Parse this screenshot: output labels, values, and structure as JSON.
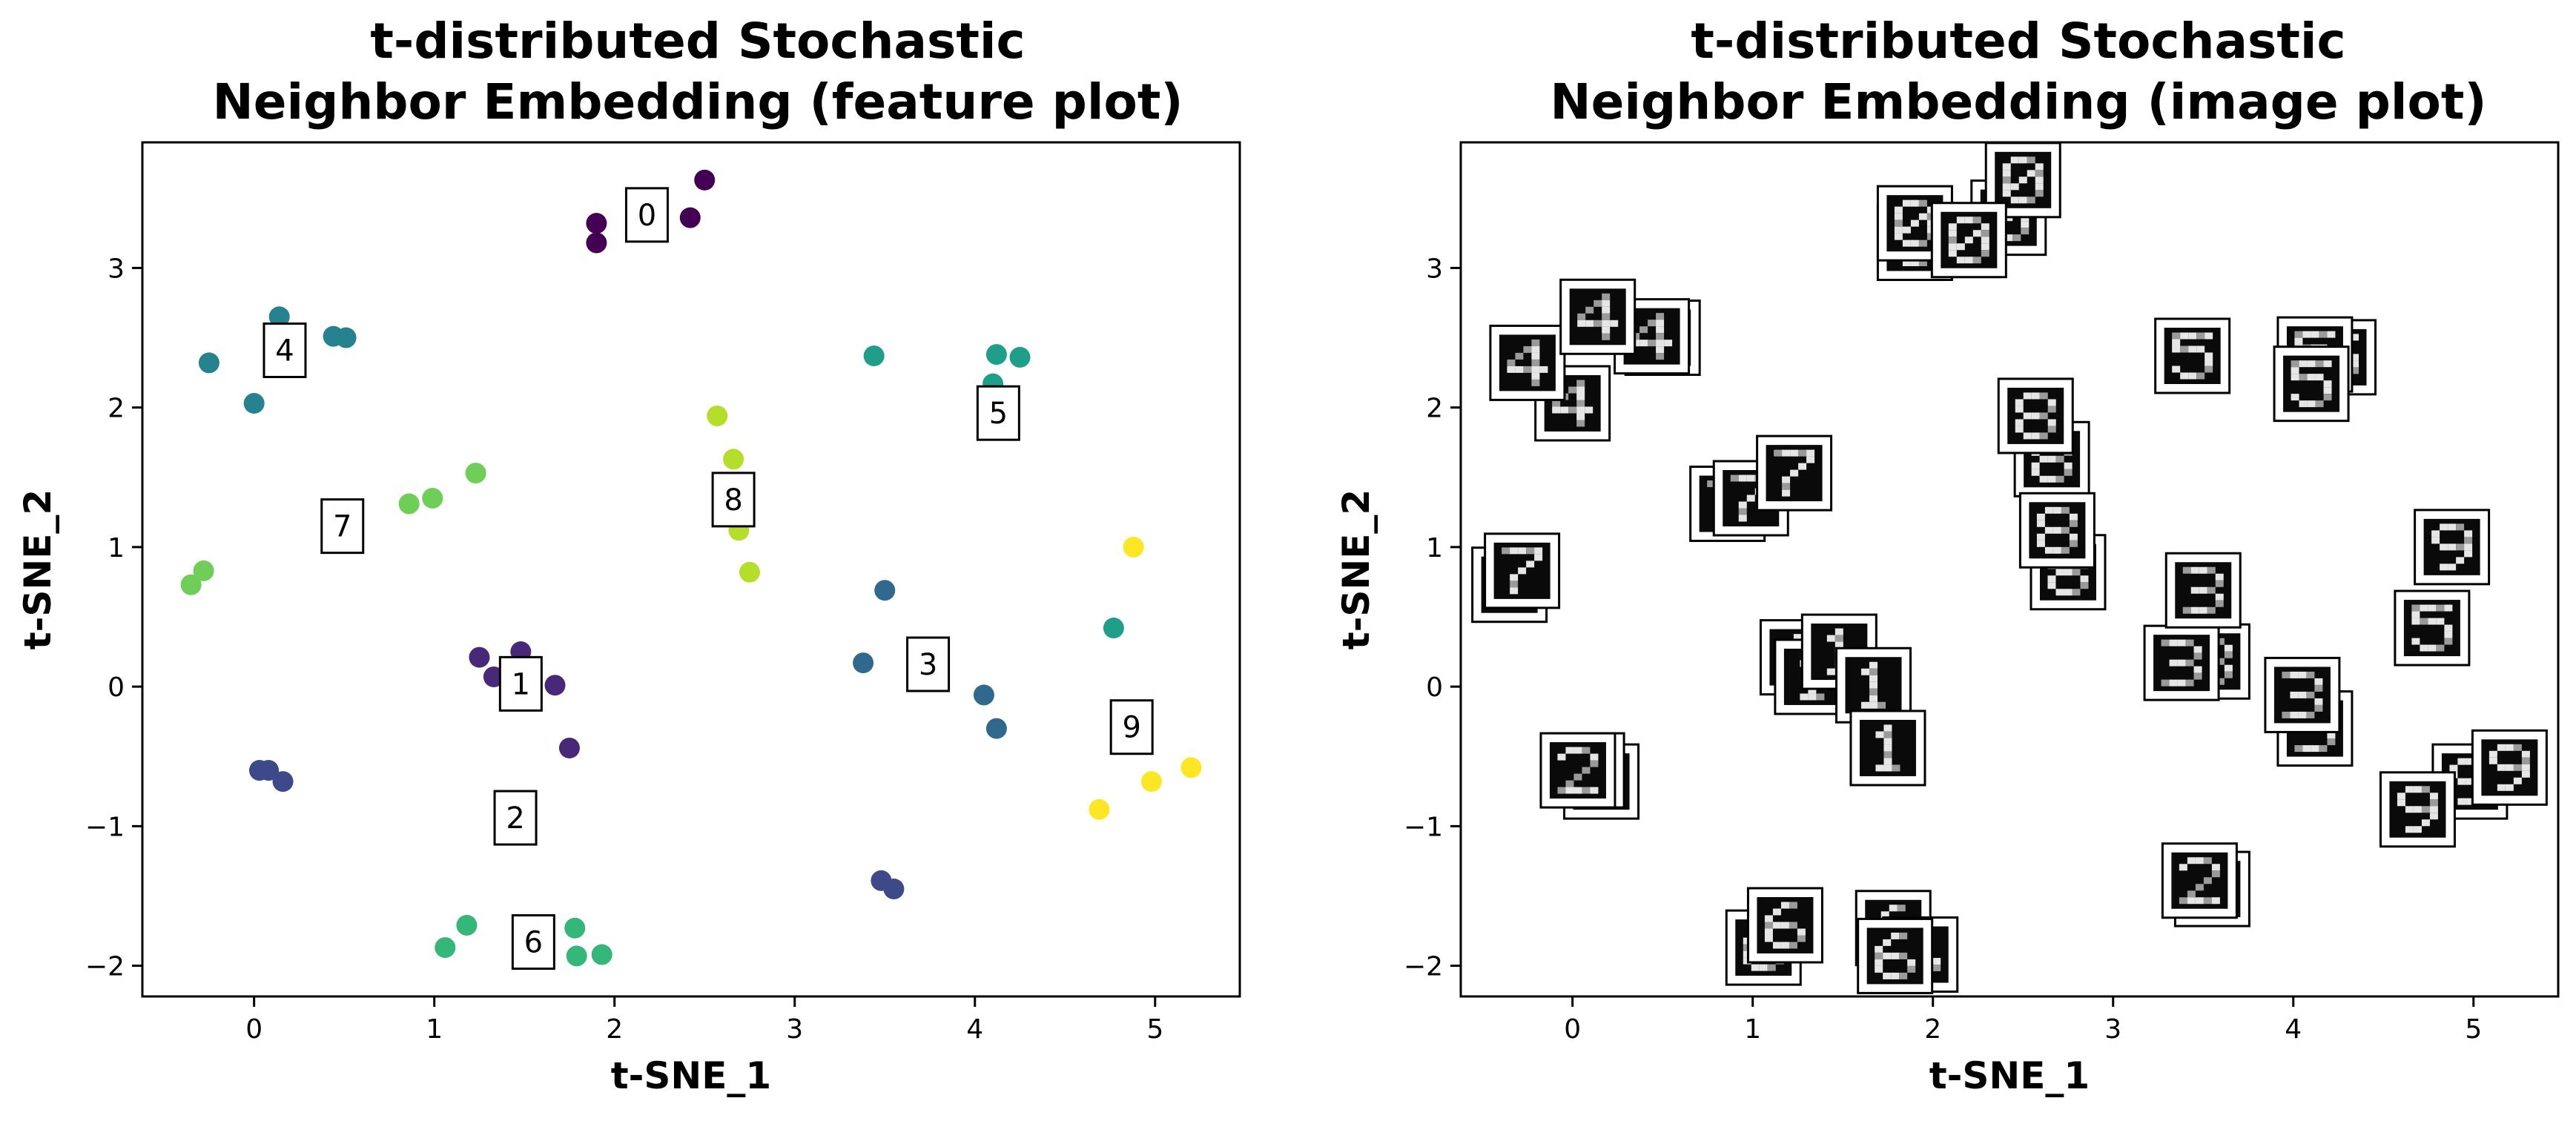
{
  "chart_data": [
    {
      "type": "scatter",
      "title_lines": [
        "t-distributed Stochastic",
        "Neighbor Embedding (feature plot)"
      ],
      "xlabel": "t-SNE_1",
      "ylabel": "t-SNE_2",
      "xlim": [
        -0.62,
        5.47
      ],
      "ylim": [
        -2.22,
        3.9
      ],
      "xticks": [
        0,
        1,
        2,
        3,
        4,
        5
      ],
      "yticks": [
        -2,
        -1,
        0,
        1,
        2,
        3
      ],
      "grid": false,
      "colormap": "viridis",
      "class_colors": {
        "0": "#440154",
        "1": "#482878",
        "2": "#3e4989",
        "3": "#31688e",
        "4": "#26828e",
        "5": "#1f9e89",
        "6": "#35b779",
        "7": "#6ece58",
        "8": "#b5de2b",
        "9": "#fde725"
      },
      "points": [
        {
          "x": 1.9,
          "y": 3.32,
          "label": 0
        },
        {
          "x": 1.9,
          "y": 3.18,
          "label": 0
        },
        {
          "x": 2.42,
          "y": 3.36,
          "label": 0
        },
        {
          "x": 2.5,
          "y": 3.63,
          "label": 0
        },
        {
          "x": 1.25,
          "y": 0.21,
          "label": 1
        },
        {
          "x": 1.33,
          "y": 0.07,
          "label": 1
        },
        {
          "x": 1.48,
          "y": 0.25,
          "label": 1
        },
        {
          "x": 1.67,
          "y": 0.01,
          "label": 1
        },
        {
          "x": 1.75,
          "y": -0.44,
          "label": 1
        },
        {
          "x": 0.03,
          "y": -0.6,
          "label": 2
        },
        {
          "x": 0.08,
          "y": -0.6,
          "label": 2
        },
        {
          "x": 0.16,
          "y": -0.68,
          "label": 2
        },
        {
          "x": 3.48,
          "y": -1.39,
          "label": 2
        },
        {
          "x": 3.55,
          "y": -1.45,
          "label": 2
        },
        {
          "x": 3.38,
          "y": 0.17,
          "label": 3
        },
        {
          "x": 3.5,
          "y": 0.69,
          "label": 3
        },
        {
          "x": 4.05,
          "y": -0.06,
          "label": 3
        },
        {
          "x": 4.12,
          "y": -0.3,
          "label": 3
        },
        {
          "x": -0.25,
          "y": 2.32,
          "label": 4
        },
        {
          "x": 0.0,
          "y": 2.03,
          "label": 4
        },
        {
          "x": 0.14,
          "y": 2.65,
          "label": 4
        },
        {
          "x": 0.44,
          "y": 2.51,
          "label": 4
        },
        {
          "x": 0.51,
          "y": 2.5,
          "label": 4
        },
        {
          "x": 3.44,
          "y": 2.37,
          "label": 5
        },
        {
          "x": 4.1,
          "y": 2.17,
          "label": 5
        },
        {
          "x": 4.12,
          "y": 2.38,
          "label": 5
        },
        {
          "x": 4.25,
          "y": 2.36,
          "label": 5
        },
        {
          "x": 4.77,
          "y": 0.42,
          "label": 5
        },
        {
          "x": 1.06,
          "y": -1.87,
          "label": 6
        },
        {
          "x": 1.18,
          "y": -1.71,
          "label": 6
        },
        {
          "x": 1.78,
          "y": -1.73,
          "label": 6
        },
        {
          "x": 1.79,
          "y": -1.93,
          "label": 6
        },
        {
          "x": 1.93,
          "y": -1.92,
          "label": 6
        },
        {
          "x": -0.35,
          "y": 0.73,
          "label": 7
        },
        {
          "x": -0.28,
          "y": 0.83,
          "label": 7
        },
        {
          "x": 0.86,
          "y": 1.31,
          "label": 7
        },
        {
          "x": 0.99,
          "y": 1.35,
          "label": 7
        },
        {
          "x": 1.23,
          "y": 1.53,
          "label": 7
        },
        {
          "x": 2.57,
          "y": 1.94,
          "label": 8
        },
        {
          "x": 2.66,
          "y": 1.63,
          "label": 8
        },
        {
          "x": 2.69,
          "y": 1.12,
          "label": 8
        },
        {
          "x": 2.75,
          "y": 0.82,
          "label": 8
        },
        {
          "x": 4.69,
          "y": -0.88,
          "label": 9
        },
        {
          "x": 4.88,
          "y": 1.0,
          "label": 9
        },
        {
          "x": 4.98,
          "y": -0.68,
          "label": 9
        },
        {
          "x": 5.2,
          "y": -0.58,
          "label": 9
        }
      ],
      "annotations": [
        {
          "text": "0",
          "x": 2.18,
          "y": 3.38
        },
        {
          "text": "1",
          "x": 1.48,
          "y": 0.02
        },
        {
          "text": "2",
          "x": 1.45,
          "y": -0.94
        },
        {
          "text": "3",
          "x": 3.74,
          "y": 0.16
        },
        {
          "text": "4",
          "x": 0.17,
          "y": 2.41
        },
        {
          "text": "5",
          "x": 4.13,
          "y": 1.96
        },
        {
          "text": "6",
          "x": 1.55,
          "y": -1.83
        },
        {
          "text": "7",
          "x": 0.49,
          "y": 1.15
        },
        {
          "text": "8",
          "x": 2.66,
          "y": 1.34
        },
        {
          "text": "9",
          "x": 4.87,
          "y": -0.29
        }
      ]
    },
    {
      "type": "scatter",
      "title_lines": [
        "t-distributed Stochastic",
        "Neighbor Embedding (image plot)"
      ],
      "xlabel": "t-SNE_1",
      "ylabel": "t-SNE_2",
      "xlim": [
        -0.62,
        5.47
      ],
      "ylim": [
        -2.22,
        3.9
      ],
      "xticks": [
        0,
        1,
        2,
        3,
        4,
        5
      ],
      "yticks": [
        -2,
        -1,
        0,
        1,
        2,
        3
      ],
      "grid": false,
      "marker": "digit thumbnail image",
      "points": [
        {
          "x": 1.9,
          "y": 3.18,
          "label": 0
        },
        {
          "x": 1.9,
          "y": 3.32,
          "label": 0
        },
        {
          "x": 2.42,
          "y": 3.36,
          "label": 0
        },
        {
          "x": 2.5,
          "y": 3.63,
          "label": 0
        },
        {
          "x": 2.2,
          "y": 3.2,
          "label": 0
        },
        {
          "x": 0.0,
          "y": 2.03,
          "label": 4
        },
        {
          "x": -0.25,
          "y": 2.32,
          "label": 4
        },
        {
          "x": 0.5,
          "y": 2.5,
          "label": 4
        },
        {
          "x": 0.44,
          "y": 2.51,
          "label": 4
        },
        {
          "x": 0.14,
          "y": 2.65,
          "label": 4
        },
        {
          "x": 3.44,
          "y": 2.37,
          "label": 5
        },
        {
          "x": 4.25,
          "y": 2.36,
          "label": 5
        },
        {
          "x": 4.12,
          "y": 2.38,
          "label": 5
        },
        {
          "x": 4.1,
          "y": 2.17,
          "label": 5
        },
        {
          "x": 2.75,
          "y": 0.82,
          "label": 8
        },
        {
          "x": 2.66,
          "y": 1.63,
          "label": 8
        },
        {
          "x": 2.57,
          "y": 1.94,
          "label": 8
        },
        {
          "x": 2.69,
          "y": 1.12,
          "label": 8
        },
        {
          "x": 0.86,
          "y": 1.31,
          "label": 7
        },
        {
          "x": 0.99,
          "y": 1.35,
          "label": 7
        },
        {
          "x": 1.23,
          "y": 1.53,
          "label": 7
        },
        {
          "x": -0.35,
          "y": 0.73,
          "label": 7
        },
        {
          "x": -0.28,
          "y": 0.83,
          "label": 7
        },
        {
          "x": 4.88,
          "y": 1.0,
          "label": 9
        },
        {
          "x": 4.77,
          "y": 0.42,
          "label": 5
        },
        {
          "x": 3.55,
          "y": 0.18,
          "label": 3
        },
        {
          "x": 3.38,
          "y": 0.17,
          "label": 3
        },
        {
          "x": 3.5,
          "y": 0.69,
          "label": 3
        },
        {
          "x": 4.12,
          "y": -0.3,
          "label": 3
        },
        {
          "x": 4.05,
          "y": -0.06,
          "label": 3
        },
        {
          "x": 1.25,
          "y": 0.21,
          "label": 1
        },
        {
          "x": 1.33,
          "y": 0.07,
          "label": 1
        },
        {
          "x": 1.48,
          "y": 0.25,
          "label": 1
        },
        {
          "x": 1.67,
          "y": 0.01,
          "label": 1
        },
        {
          "x": 1.75,
          "y": -0.44,
          "label": 1
        },
        {
          "x": 0.16,
          "y": -0.68,
          "label": 2
        },
        {
          "x": 0.08,
          "y": -0.6,
          "label": 2
        },
        {
          "x": 0.03,
          "y": -0.6,
          "label": 2
        },
        {
          "x": 4.98,
          "y": -0.68,
          "label": 9
        },
        {
          "x": 5.2,
          "y": -0.58,
          "label": 9
        },
        {
          "x": 4.69,
          "y": -0.88,
          "label": 9
        },
        {
          "x": 3.55,
          "y": -1.45,
          "label": 2
        },
        {
          "x": 3.48,
          "y": -1.39,
          "label": 2
        },
        {
          "x": 1.06,
          "y": -1.87,
          "label": 6
        },
        {
          "x": 1.18,
          "y": -1.71,
          "label": 6
        },
        {
          "x": 1.78,
          "y": -1.73,
          "label": 6
        },
        {
          "x": 1.93,
          "y": -1.92,
          "label": 6
        },
        {
          "x": 1.79,
          "y": -1.93,
          "label": 6
        }
      ]
    }
  ]
}
